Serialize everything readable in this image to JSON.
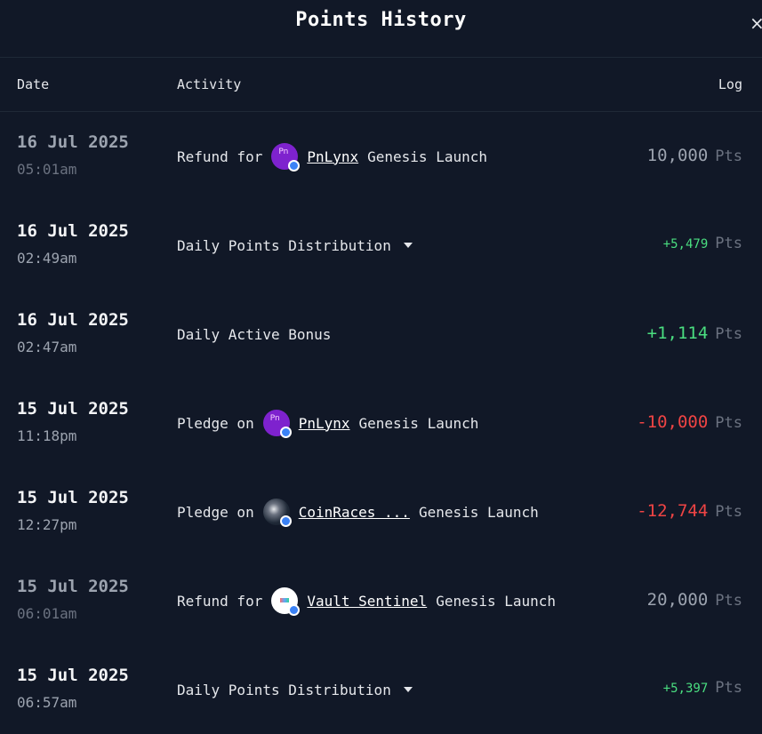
{
  "header": {
    "title": "Points History",
    "close_glyph": "×"
  },
  "columns": {
    "date": "Date",
    "activity": "Activity",
    "log": "Log"
  },
  "rows": [
    {
      "date": "16 Jul 2025",
      "time": "05:01am",
      "prefix": "Refund for",
      "project": "PnLynx",
      "suffix": "Genesis Launch",
      "amount": "10,000",
      "unit": "Pts"
    },
    {
      "date": "16 Jul 2025",
      "time": "02:49am",
      "label": "Daily Points Distribution",
      "amount": "+5,479",
      "unit": "Pts"
    },
    {
      "date": "16 Jul 2025",
      "time": "02:47am",
      "label": "Daily Active Bonus",
      "amount": "+1,114",
      "unit": "Pts"
    },
    {
      "date": "15 Jul 2025",
      "time": "11:18pm",
      "prefix": "Pledge on",
      "project": "PnLynx",
      "suffix": "Genesis Launch",
      "amount": "-10,000",
      "unit": "Pts"
    },
    {
      "date": "15 Jul 2025",
      "time": "12:27pm",
      "prefix": "Pledge on",
      "project": "CoinRaces ...",
      "suffix": "Genesis Launch",
      "amount": "-12,744",
      "unit": "Pts"
    },
    {
      "date": "15 Jul 2025",
      "time": "06:01am",
      "prefix": "Refund for",
      "project": "Vault Sentinel",
      "suffix": "Genesis Launch",
      "amount": "20,000",
      "unit": "Pts"
    },
    {
      "date": "15 Jul 2025",
      "time": "06:57am",
      "label": "Daily Points Distribution",
      "amount": "+5,397",
      "unit": "Pts"
    }
  ],
  "colors": {
    "background": "#111827",
    "positive": "#4ade80",
    "negative": "#ef4444",
    "refund": "#9ca3af"
  },
  "icons": {
    "close": "close-icon",
    "expand": "caret-down-icon",
    "verified": "verified-badge-icon"
  }
}
